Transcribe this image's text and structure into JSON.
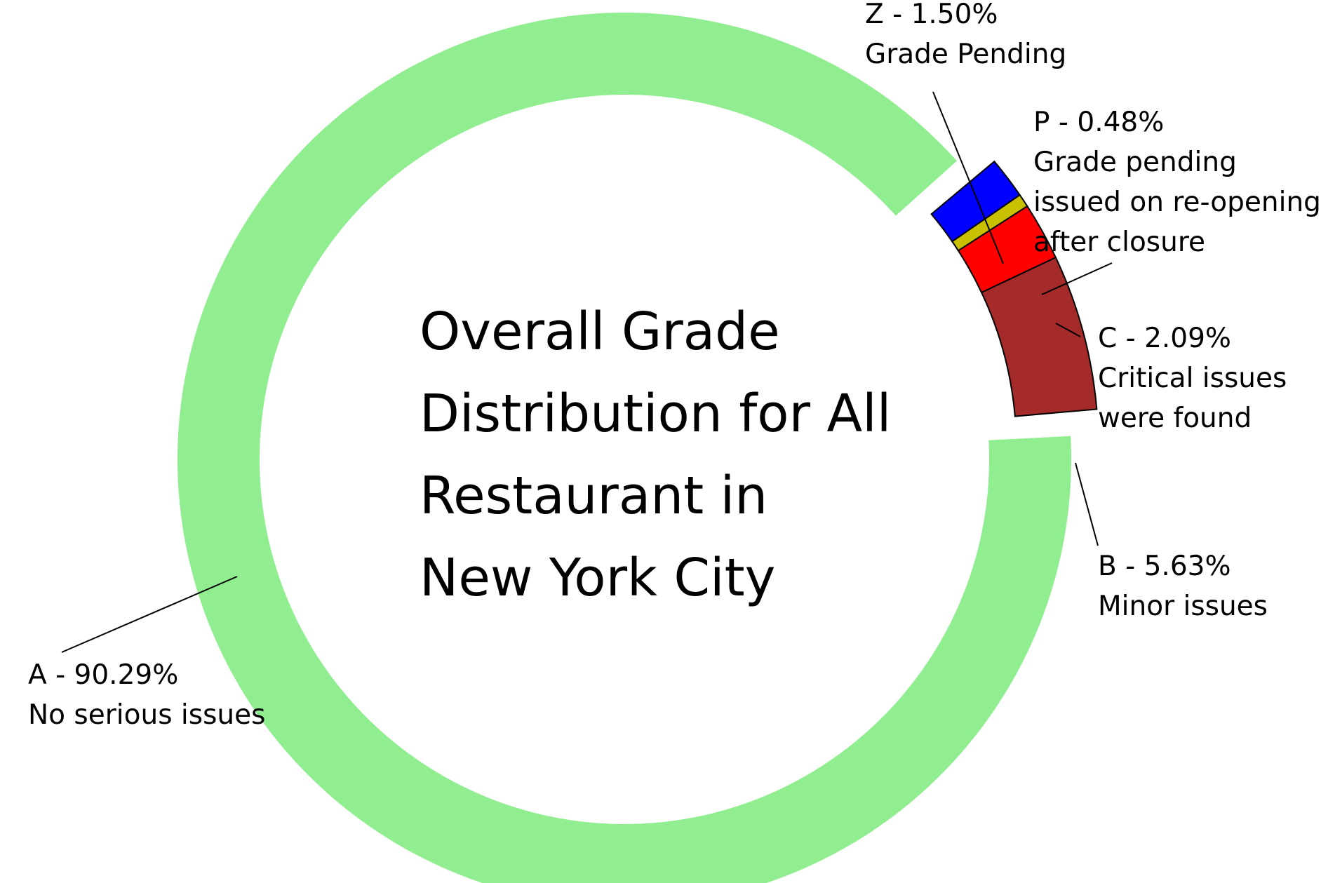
{
  "chart_data": {
    "type": "donut",
    "title_lines": [
      "Overall Grade",
      "Distribution for All",
      "Restaurant in",
      "New York City"
    ],
    "slices": [
      {
        "grade": "B",
        "value": 5.63,
        "color": "#a52a2a",
        "label_lines": [
          "B - 5.63%",
          "Minor issues"
        ]
      },
      {
        "grade": "C",
        "value": 2.09,
        "color": "#ff0000",
        "label_lines": [
          "C - 2.09%",
          "Critical issues",
          "were found"
        ]
      },
      {
        "grade": "P",
        "value": 0.48,
        "color": "#c9c000",
        "label_lines": [
          "P - 0.48%",
          "Grade pending",
          "issued on re-opening",
          "after closure"
        ]
      },
      {
        "grade": "Z",
        "value": 1.5,
        "color": "#0000ff",
        "label_lines": [
          "Z - 1.50%",
          "Grade Pending"
        ]
      },
      {
        "grade": "A",
        "value": 90.29,
        "color": "#90ee90",
        "label_lines": [
          "A - 90.29%",
          "No serious issues"
        ]
      }
    ]
  }
}
